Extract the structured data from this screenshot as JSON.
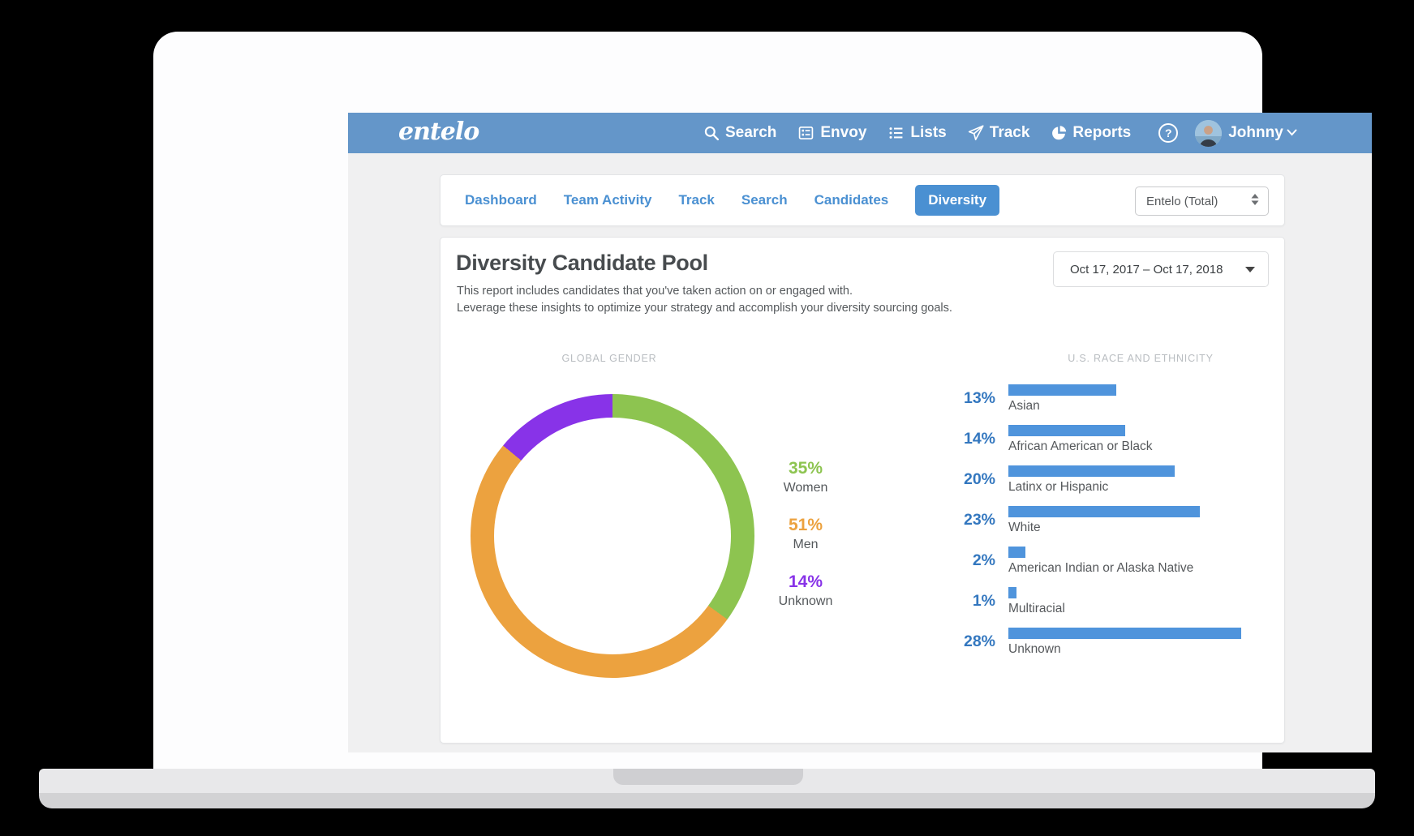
{
  "app": {
    "brand": "entelo",
    "navbar": {
      "items": [
        {
          "label": "Search",
          "icon": "search-icon"
        },
        {
          "label": "Envoy",
          "icon": "envoy-icon"
        },
        {
          "label": "Lists",
          "icon": "lists-icon"
        },
        {
          "label": "Track",
          "icon": "track-icon"
        },
        {
          "label": "Reports",
          "icon": "reports-icon"
        }
      ],
      "help_glyph": "?",
      "user": {
        "name": "Johnny"
      }
    },
    "tabs": {
      "items": [
        "Dashboard",
        "Team Activity",
        "Track",
        "Search",
        "Candidates",
        "Diversity"
      ],
      "active": "Diversity"
    },
    "team_select": {
      "value": "Entelo (Total)"
    },
    "report": {
      "title": "Diversity Candidate Pool",
      "description_line1": "This report includes candidates that you've taken action on or engaged with.",
      "description_line2": "Leverage these insights to optimize your strategy and accomplish your diversity sourcing goals.",
      "date_range": "Oct 17, 2017 – Oct 17, 2018"
    }
  },
  "chart_data": [
    {
      "type": "pie",
      "subtype": "donut",
      "title": "GLOBAL GENDER",
      "series": [
        {
          "label": "Women",
          "value": 35,
          "color": "#8dc450"
        },
        {
          "label": "Men",
          "value": 51,
          "color": "#eca23f"
        },
        {
          "label": "Unknown",
          "value": 14,
          "color": "#8833e8"
        }
      ],
      "unit": "%",
      "start_angle_deg": 0,
      "direction": "clockwise"
    },
    {
      "type": "bar",
      "orientation": "horizontal",
      "title": "U.S. RACE AND ETHNICITY",
      "bar_color": "#4f94dc",
      "categories": [
        "Asian",
        "African American or Black",
        "Latinx or Hispanic",
        "White",
        "American Indian or Alaska Native",
        "Multiracial",
        "Unknown"
      ],
      "values": [
        13,
        14,
        20,
        23,
        2,
        1,
        28
      ],
      "unit": "%",
      "xlim": [
        0,
        28
      ]
    }
  ],
  "colors": {
    "navbar": "#6496c9",
    "accent_blue": "#4a90d2",
    "bar_blue": "#4f94dc",
    "pct_blue": "#3377bf",
    "women_green": "#8dc450",
    "men_orange": "#eca23f",
    "unknown_purple": "#8833e8"
  }
}
